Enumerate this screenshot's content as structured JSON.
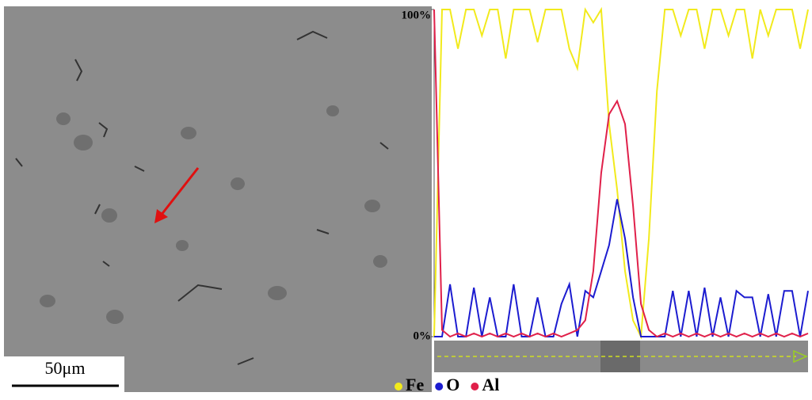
{
  "image": {
    "scale_bar": "50μm"
  },
  "chart_data": {
    "type": "line",
    "categories": [
      null,
      null,
      null,
      null,
      null,
      null,
      null,
      null,
      null,
      null,
      null,
      null,
      null,
      null,
      null,
      null,
      null,
      null,
      null,
      null,
      null,
      null,
      null,
      null,
      null,
      null,
      null,
      null,
      null,
      null,
      null,
      null,
      null,
      null,
      null,
      null,
      null,
      null,
      null,
      null,
      null,
      null,
      null,
      null,
      null,
      null,
      null,
      null
    ],
    "series": [
      {
        "name": "Fe",
        "color": "#f2ea1c",
        "values": [
          0,
          100,
          100,
          88,
          100,
          100,
          92,
          100,
          100,
          85,
          100,
          100,
          100,
          90,
          100,
          100,
          100,
          88,
          82,
          100,
          96,
          100,
          65,
          45,
          20,
          5,
          0,
          30,
          75,
          100,
          100,
          92,
          100,
          100,
          88,
          100,
          100,
          92,
          100,
          100,
          85,
          100,
          92,
          100,
          100,
          100,
          88,
          100
        ]
      },
      {
        "name": "O",
        "color": "#1c1cd0",
        "values": [
          0,
          0,
          16,
          0,
          0,
          15,
          0,
          12,
          0,
          0,
          16,
          0,
          0,
          12,
          0,
          0,
          10,
          16,
          0,
          14,
          12,
          20,
          28,
          42,
          30,
          12,
          0,
          0,
          0,
          0,
          14,
          0,
          14,
          0,
          15,
          0,
          12,
          0,
          14,
          12,
          12,
          0,
          13,
          0,
          14,
          14,
          0,
          14
        ]
      },
      {
        "name": "Al",
        "color": "#e0204a",
        "values": [
          100,
          2,
          0,
          1,
          0,
          1,
          0,
          1,
          0,
          1,
          0,
          1,
          0,
          1,
          0,
          1,
          0,
          1,
          2,
          5,
          20,
          50,
          68,
          72,
          65,
          40,
          10,
          2,
          0,
          1,
          0,
          1,
          0,
          1,
          0,
          1,
          0,
          1,
          0,
          1,
          0,
          1,
          0,
          1,
          0,
          1,
          0,
          1
        ]
      }
    ],
    "ylim": [
      0,
      100
    ],
    "yticks": [
      {
        "value": 0,
        "label": "0%"
      },
      {
        "value": 100,
        "label": "100%"
      }
    ]
  }
}
